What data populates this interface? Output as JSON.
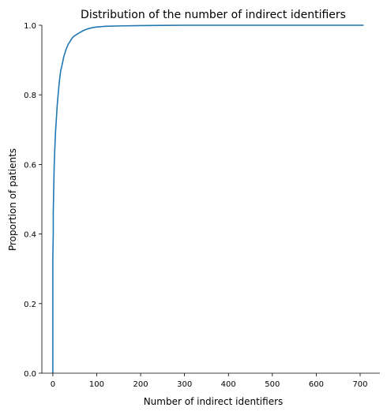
{
  "chart_data": {
    "type": "line",
    "title": "Distribution of the number of indirect identifiers",
    "xlabel": "Number of indirect identifiers",
    "ylabel": "Proportion of patients",
    "xlim": [
      -25,
      745
    ],
    "ylim": [
      0,
      1
    ],
    "x_ticks": [
      0,
      100,
      200,
      300,
      400,
      500,
      600,
      700
    ],
    "y_ticks": [
      0.0,
      0.2,
      0.4,
      0.6,
      0.8,
      1.0
    ],
    "y_tick_labels": [
      "0.0",
      "0.2",
      "0.4",
      "0.6",
      "0.8",
      "1.0"
    ],
    "grid": false,
    "line_color": "#1f77b4",
    "series": [
      {
        "x": [
          0,
          0,
          1,
          1,
          2,
          3,
          4,
          5,
          6,
          8,
          10,
          12,
          15,
          18,
          20,
          25,
          30,
          35,
          40,
          45,
          50,
          60,
          70,
          80,
          90,
          100,
          110,
          120,
          150,
          200,
          250,
          300,
          400,
          500,
          600,
          708
        ],
        "y": [
          0.0,
          0.33,
          0.4,
          0.46,
          0.53,
          0.59,
          0.63,
          0.66,
          0.69,
          0.73,
          0.77,
          0.8,
          0.84,
          0.87,
          0.88,
          0.91,
          0.93,
          0.945,
          0.955,
          0.965,
          0.97,
          0.978,
          0.985,
          0.99,
          0.993,
          0.995,
          0.996,
          0.997,
          0.998,
          0.999,
          0.9995,
          1.0,
          1.0,
          1.0,
          1.0,
          1.0
        ]
      }
    ]
  }
}
